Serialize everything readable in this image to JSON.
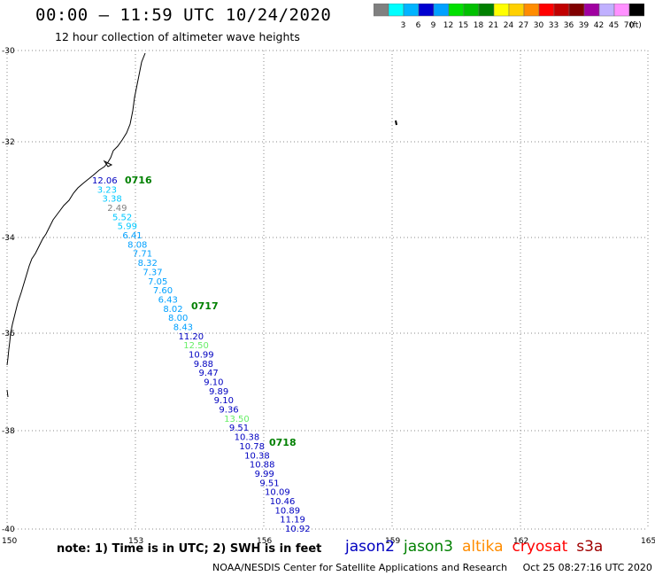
{
  "title": "00:00 – 11:59 UTC 10/24/2020",
  "subtitle": "12 hour collection of altimeter wave heights",
  "legend": {
    "unit": "(ft)",
    "bins": [
      {
        "label": "",
        "color": "#808080"
      },
      {
        "label": "3",
        "color": "#00ffff"
      },
      {
        "label": "6",
        "color": "#00b4ff"
      },
      {
        "label": "9",
        "color": "#0000d0"
      },
      {
        "label": "12",
        "color": "#00a0ff"
      },
      {
        "label": "15",
        "color": "#00e000"
      },
      {
        "label": "18",
        "color": "#00c000"
      },
      {
        "label": "21",
        "color": "#008000"
      },
      {
        "label": "24",
        "color": "#ffff00"
      },
      {
        "label": "27",
        "color": "#ffd000"
      },
      {
        "label": "30",
        "color": "#ff8c00"
      },
      {
        "label": "33",
        "color": "#ff0000"
      },
      {
        "label": "36",
        "color": "#c00000"
      },
      {
        "label": "39",
        "color": "#800000"
      },
      {
        "label": "42",
        "color": "#a000a0"
      },
      {
        "label": "45",
        "color": "#c0b0ff"
      },
      {
        "label": "70",
        "color": "#ff90ff"
      },
      {
        "label": "",
        "color": "#000000"
      }
    ]
  },
  "map": {
    "lon_ticks": [
      "150",
      "153",
      "156",
      "159",
      "162",
      "165"
    ],
    "lat_ticks": [
      "-30",
      "-32",
      "-34",
      "-36",
      "-38",
      "-40"
    ],
    "pass_labels": [
      {
        "text": "0716",
        "color": "#008000"
      },
      {
        "text": "0717",
        "color": "#008000"
      },
      {
        "text": "0718",
        "color": "#008000"
      }
    ],
    "readings": [
      {
        "value": "12.06",
        "color": "#0000c0"
      },
      {
        "value": "3.23",
        "color": "#00c8ff"
      },
      {
        "value": "3.38",
        "color": "#00c8ff"
      },
      {
        "value": "2.49",
        "color": "#808080"
      },
      {
        "value": "5.52",
        "color": "#00c8ff"
      },
      {
        "value": "5.99",
        "color": "#00c8ff"
      },
      {
        "value": "6.41",
        "color": "#00a0ff"
      },
      {
        "value": "8.08",
        "color": "#00a0ff"
      },
      {
        "value": "7.71",
        "color": "#00a0ff"
      },
      {
        "value": "8.32",
        "color": "#00a0ff"
      },
      {
        "value": "7.37",
        "color": "#00a0ff"
      },
      {
        "value": "7.05",
        "color": "#00a0ff"
      },
      {
        "value": "7.60",
        "color": "#00a0ff"
      },
      {
        "value": "6.43",
        "color": "#00a0ff"
      },
      {
        "value": "8.02",
        "color": "#00a0ff"
      },
      {
        "value": "8.00",
        "color": "#00a0ff"
      },
      {
        "value": "8.43",
        "color": "#00a0ff"
      },
      {
        "value": "11.20",
        "color": "#0000c0"
      },
      {
        "value": "12.50",
        "color": "#66ee66"
      },
      {
        "value": "10.99",
        "color": "#0000c0"
      },
      {
        "value": "9.88",
        "color": "#0000c0"
      },
      {
        "value": "9.47",
        "color": "#0000c0"
      },
      {
        "value": "9.10",
        "color": "#0000c0"
      },
      {
        "value": "9.89",
        "color": "#0000c0"
      },
      {
        "value": "9.10",
        "color": "#0000c0"
      },
      {
        "value": "9.36",
        "color": "#0000c0"
      },
      {
        "value": "13.50",
        "color": "#66ee66"
      },
      {
        "value": "9.51",
        "color": "#0000c0"
      },
      {
        "value": "10.38",
        "color": "#0000c0"
      },
      {
        "value": "10.78",
        "color": "#0000c0"
      },
      {
        "value": "10.38",
        "color": "#0000c0"
      },
      {
        "value": "10.88",
        "color": "#0000c0"
      },
      {
        "value": "9.99",
        "color": "#0000c0"
      },
      {
        "value": "9.51",
        "color": "#0000c0"
      },
      {
        "value": "10.09",
        "color": "#0000c0"
      },
      {
        "value": "10.46",
        "color": "#0000c0"
      },
      {
        "value": "10.89",
        "color": "#0000c0"
      },
      {
        "value": "11.19",
        "color": "#0000c0"
      },
      {
        "value": "10.92",
        "color": "#0000c0"
      }
    ]
  },
  "note": "note:  1) Time is in UTC;  2) SWH is in feet",
  "satellites": [
    {
      "name": "jason2",
      "color": "#0000c0"
    },
    {
      "name": "jason3",
      "color": "#008000"
    },
    {
      "name": "altika",
      "color": "#ff8c00"
    },
    {
      "name": "cryosat",
      "color": "#ff0000"
    },
    {
      "name": "s3a",
      "color": "#a00000"
    }
  ],
  "footer": {
    "org": "NOAA/NESDIS Center for Satellite Applications and Research",
    "timestamp": "Oct 25 08:27:16 UTC 2020"
  }
}
